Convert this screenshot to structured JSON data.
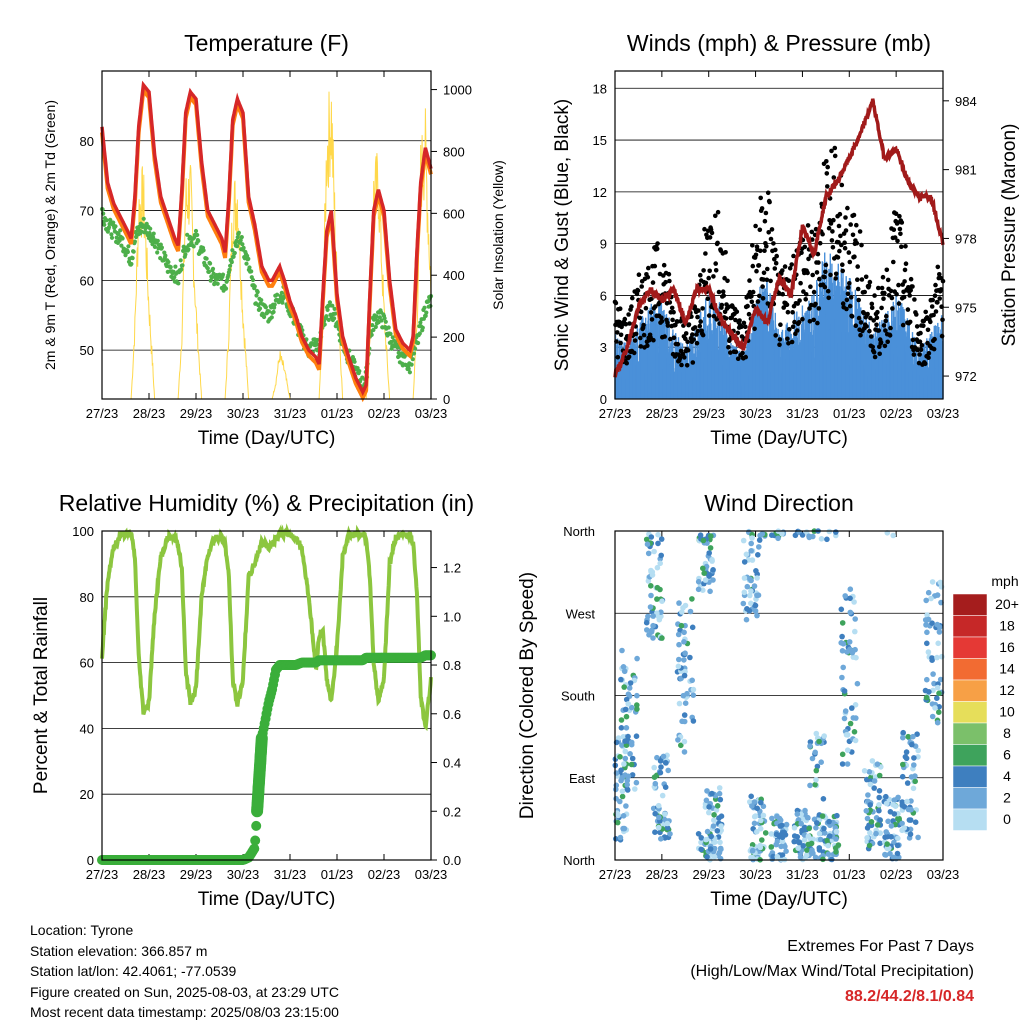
{
  "x_ticks": [
    "27/23",
    "28/23",
    "29/23",
    "30/23",
    "31/23",
    "01/23",
    "02/23",
    "03/23"
  ],
  "x_label": "Time (Day/UTC)",
  "colors": {
    "t2m": "#d62728",
    "t9m": "#ff7f0e",
    "td": "#4daf4a",
    "solar": "#ffd84a",
    "wind": "#4a90d9",
    "gust": "#000000",
    "pressure": "#a11a1a",
    "rh": "#8cc63f",
    "precip": "#3aae3a"
  },
  "chart_data": [
    {
      "type": "line",
      "title": "Temperature (F)",
      "ylabel": "2m & 9m T (Red, Orange) & 2m Td (Green)",
      "ylabel_right": "Solar Insolation (Yellow)",
      "ylim": [
        43,
        90
      ],
      "yticks": [
        50,
        60,
        70,
        80
      ],
      "ylim_right": [
        0,
        1060
      ],
      "yticks_right": [
        0,
        200,
        400,
        600,
        800,
        1000
      ],
      "x": [
        0,
        0.12,
        0.25,
        0.4,
        0.55,
        0.62,
        0.7,
        0.78,
        0.88,
        1.0,
        1.12,
        1.25,
        1.4,
        1.55,
        1.62,
        1.7,
        1.78,
        1.88,
        2.0,
        2.12,
        2.25,
        2.4,
        2.55,
        2.62,
        2.7,
        2.78,
        2.88,
        3.0,
        3.12,
        3.25,
        3.4,
        3.55,
        3.62,
        3.7,
        3.78,
        3.88,
        4.0,
        4.12,
        4.25,
        4.4,
        4.55,
        4.62,
        4.7,
        4.78,
        4.88,
        5.0,
        5.12,
        5.25,
        5.4,
        5.55,
        5.62,
        5.7,
        5.78,
        5.88,
        6.0,
        6.12,
        6.25,
        6.4,
        6.55,
        6.62,
        6.7,
        6.78,
        6.88,
        7.0
      ],
      "series": [
        {
          "name": "2m T",
          "values": [
            82,
            74,
            71,
            69,
            67,
            66,
            72,
            82,
            88,
            87,
            78,
            72,
            69,
            66,
            65,
            73,
            84,
            87,
            86,
            77,
            70,
            68,
            66,
            64,
            72,
            83,
            86,
            84,
            72,
            68,
            62,
            60,
            60,
            61,
            62,
            60,
            57,
            55,
            52,
            50,
            49,
            48,
            58,
            67,
            70,
            58,
            52,
            49,
            46,
            44,
            45,
            58,
            70,
            73,
            70,
            60,
            53,
            51,
            50,
            52,
            64,
            74,
            79,
            76
          ]
        },
        {
          "name": "2m Td",
          "values": [
            70,
            68,
            67,
            66,
            64,
            63,
            66,
            67,
            68,
            67,
            66,
            64,
            62,
            61,
            60,
            63,
            65,
            66,
            66,
            64,
            62,
            60,
            60,
            59,
            62,
            64,
            66,
            65,
            62,
            58,
            56,
            55,
            56,
            57,
            58,
            58,
            56,
            54,
            52,
            50,
            51,
            50,
            54,
            55,
            56,
            54,
            51,
            49,
            47,
            45,
            46,
            52,
            54,
            55,
            54,
            52,
            50,
            49,
            48,
            50,
            51,
            53,
            56,
            57
          ]
        },
        {
          "name": "Solar",
          "axis": "right",
          "values": [
            0,
            0,
            0,
            0,
            0,
            0,
            250,
            650,
            700,
            320,
            0,
            0,
            0,
            0,
            0,
            230,
            680,
            720,
            300,
            0,
            0,
            0,
            0,
            0,
            240,
            650,
            700,
            290,
            0,
            0,
            0,
            0,
            0,
            60,
            150,
            100,
            0,
            0,
            0,
            0,
            0,
            0,
            300,
            850,
            980,
            400,
            0,
            0,
            0,
            0,
            0,
            250,
            700,
            750,
            300,
            0,
            0,
            0,
            0,
            0,
            260,
            780,
            860,
            380
          ]
        }
      ]
    },
    {
      "type": "line",
      "title": "Winds (mph) & Pressure (mb)",
      "ylabel": "Sonic Wind & Gust (Blue, Black)",
      "ylabel_right": "Station Pressure (Maroon)",
      "ylim": [
        0,
        19
      ],
      "yticks": [
        0,
        3,
        6,
        9,
        12,
        15,
        18
      ],
      "ylim_right": [
        971.0,
        985.3
      ],
      "yticks_right": [
        972,
        975,
        978,
        981,
        984
      ],
      "x": [
        0,
        0.25,
        0.5,
        0.75,
        1.0,
        1.25,
        1.5,
        1.75,
        2.0,
        2.25,
        2.5,
        2.75,
        3.0,
        3.25,
        3.5,
        3.75,
        4.0,
        4.25,
        4.5,
        4.75,
        5.0,
        5.25,
        5.5,
        5.75,
        6.0,
        6.25,
        6.5,
        6.75,
        7.0
      ],
      "series": [
        {
          "name": "Wind",
          "values": [
            2.5,
            2.0,
            2.8,
            3.5,
            3.8,
            2.5,
            2.0,
            2.8,
            4.0,
            3.5,
            2.0,
            1.8,
            3.8,
            4.5,
            2.5,
            3.0,
            3.5,
            4.0,
            5.5,
            5.0,
            4.5,
            3.5,
            2.5,
            3.0,
            4.0,
            3.0,
            1.8,
            2.5,
            3.5
          ]
        },
        {
          "name": "Gust",
          "values": [
            5,
            4,
            6,
            7,
            8,
            5,
            4,
            5,
            10,
            9,
            5,
            4,
            9,
            11,
            6,
            7,
            9,
            8,
            13,
            12,
            10,
            8,
            5,
            6,
            10,
            7,
            4,
            5,
            8
          ]
        },
        {
          "name": "Pressure",
          "axis": "right",
          "values": [
            972.0,
            973.2,
            975.0,
            975.8,
            975.3,
            975.8,
            974.3,
            975.8,
            975.8,
            974.5,
            973.8,
            973.2,
            975.0,
            974.3,
            976.3,
            975.5,
            978.5,
            977.3,
            979.8,
            980.5,
            981.5,
            982.6,
            984.0,
            981.5,
            981.9,
            980.5,
            979.8,
            979.8,
            977.8
          ]
        }
      ]
    },
    {
      "type": "line",
      "title": "Relative Humidity (%) & Precipitation (in)",
      "ylabel": "Percent & Total Rainfall",
      "ylim": [
        0,
        100
      ],
      "yticks": [
        0,
        20,
        40,
        60,
        80,
        100
      ],
      "ylim_right": [
        0,
        1.35
      ],
      "yticks_right": [
        0.0,
        0.2,
        0.4,
        0.6,
        0.8,
        1.0,
        1.2
      ],
      "x": [
        0,
        0.12,
        0.25,
        0.4,
        0.55,
        0.62,
        0.7,
        0.78,
        0.88,
        1.0,
        1.12,
        1.25,
        1.4,
        1.55,
        1.62,
        1.7,
        1.78,
        1.88,
        2.0,
        2.12,
        2.25,
        2.4,
        2.55,
        2.62,
        2.7,
        2.78,
        2.88,
        3.0,
        3.12,
        3.25,
        3.4,
        3.55,
        3.62,
        3.7,
        3.78,
        3.88,
        4.0,
        4.12,
        4.25,
        4.4,
        4.55,
        4.62,
        4.7,
        4.78,
        4.88,
        5.0,
        5.12,
        5.25,
        5.4,
        5.55,
        5.62,
        5.7,
        5.78,
        5.88,
        6.0,
        6.12,
        6.25,
        6.4,
        6.55,
        6.62,
        6.7,
        6.78,
        6.88,
        7.0
      ],
      "series": [
        {
          "name": "RH",
          "values": [
            62,
            85,
            95,
            99,
            99,
            99,
            92,
            62,
            45,
            48,
            75,
            92,
            98,
            98,
            96,
            88,
            58,
            48,
            52,
            80,
            93,
            98,
            98,
            96,
            86,
            55,
            47,
            55,
            86,
            90,
            97,
            95,
            96,
            98,
            99,
            99,
            99,
            98,
            95,
            80,
            58,
            68,
            70,
            55,
            48,
            65,
            92,
            99,
            99,
            99,
            98,
            86,
            60,
            48,
            55,
            90,
            98,
            99,
            99,
            96,
            82,
            50,
            40,
            55
          ]
        },
        {
          "name": "Precip",
          "axis": "right",
          "values": [
            0,
            0,
            0,
            0,
            0,
            0,
            0,
            0,
            0,
            0,
            0,
            0,
            0,
            0,
            0,
            0,
            0,
            0,
            0,
            0,
            0,
            0,
            0,
            0,
            0,
            0,
            0,
            0,
            0.01,
            0.05,
            0.5,
            0.65,
            0.7,
            0.78,
            0.8,
            0.8,
            0.8,
            0.8,
            0.81,
            0.81,
            0.81,
            0.82,
            0.82,
            0.82,
            0.82,
            0.82,
            0.82,
            0.82,
            0.82,
            0.82,
            0.83,
            0.83,
            0.83,
            0.83,
            0.83,
            0.83,
            0.83,
            0.83,
            0.83,
            0.83,
            0.83,
            0.83,
            0.84,
            0.84
          ]
        }
      ]
    },
    {
      "type": "scatter",
      "title": "Wind Direction",
      "ylabel": "Direction (Colored By Speed)",
      "yticks": [
        "North",
        "East",
        "South",
        "West",
        "North"
      ],
      "colorbar_title": "mph",
      "colorbar_labels": [
        "20+",
        "18",
        "16",
        "14",
        "12",
        "10",
        "8",
        "6",
        "4",
        "2",
        "0"
      ],
      "colorbar_colors": [
        "#a51d1d",
        "#c62828",
        "#e53935",
        "#f26b32",
        "#f7a046",
        "#e6de5a",
        "#7bc06a",
        "#3ea35c",
        "#3e7fbf",
        "#6ea8d9",
        "#b6def2"
      ],
      "clusters": [
        {
          "x": 0.1,
          "dir": 80,
          "spread": 60
        },
        {
          "x": 0.3,
          "dir": 150,
          "spread": 80
        },
        {
          "x": 0.85,
          "dir": 300,
          "spread": 60
        },
        {
          "x": 1.0,
          "dir": 70,
          "spread": 50
        },
        {
          "x": 1.5,
          "dir": 200,
          "spread": 90
        },
        {
          "x": 1.95,
          "dir": 340,
          "spread": 50
        },
        {
          "x": 2.1,
          "dir": 40,
          "spread": 40
        },
        {
          "x": 2.9,
          "dir": 320,
          "spread": 60
        },
        {
          "x": 3.05,
          "dir": 30,
          "spread": 40
        },
        {
          "x": 3.5,
          "dir": 20,
          "spread": 30
        },
        {
          "x": 4.0,
          "dir": 25,
          "spread": 30
        },
        {
          "x": 4.3,
          "dir": 60,
          "spread": 80
        },
        {
          "x": 4.6,
          "dir": 20,
          "spread": 30
        },
        {
          "x": 5.0,
          "dir": 200,
          "spread": 100
        },
        {
          "x": 5.5,
          "dir": 60,
          "spread": 50
        },
        {
          "x": 5.9,
          "dir": 30,
          "spread": 40
        },
        {
          "x": 6.3,
          "dir": 80,
          "spread": 60
        },
        {
          "x": 6.8,
          "dir": 230,
          "spread": 80
        }
      ]
    }
  ],
  "info": {
    "location": "Location: Tyrone",
    "elevation": "Station elevation: 366.857 m",
    "latlon": "Station lat/lon: 42.4061; -77.0539",
    "created": "Figure created on Sun, 2025-08-03, at 23:29 UTC",
    "recent": "Most recent data timestamp: 2025/08/03 23:15:00"
  },
  "extremes": {
    "title": "Extremes For Past 7 Days",
    "subtitle": "(High/Low/Max Wind/Total Precipitation)",
    "values": "88.2/44.2/8.1/0.84"
  }
}
